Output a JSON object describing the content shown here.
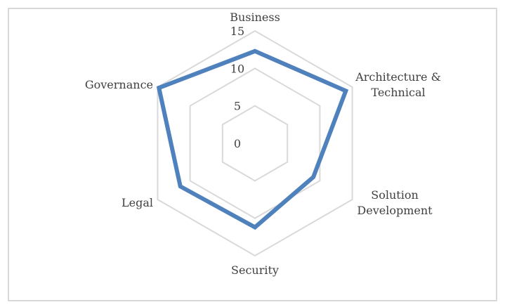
{
  "chart_data": {
    "type": "radar",
    "categories": [
      "Business",
      "Architecture &\nTechnical",
      "Solution\nDevelopment",
      "Security",
      "Legal",
      "Governance"
    ],
    "series": [
      {
        "values": [
          12.3,
          14.0,
          9.0,
          11.2,
          11.5,
          14.8
        ]
      }
    ],
    "rlim": [
      0,
      15
    ],
    "ticks": [
      0,
      5,
      10,
      15
    ],
    "grid": true,
    "legend": "none",
    "colors": {
      "series": "#4f81bd",
      "grid": "#d9d9d9",
      "text": "#404040"
    }
  }
}
